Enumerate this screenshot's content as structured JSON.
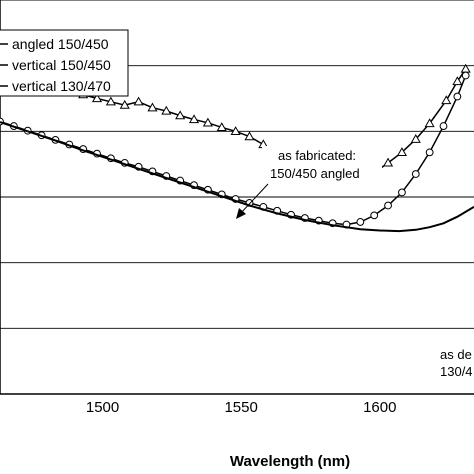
{
  "chart_data": {
    "type": "line",
    "xlabel": "Wavelength (nm)",
    "ylabel": "",
    "title": "",
    "xlim": [
      1463,
      1634
    ],
    "ylim": [
      0,
      6
    ],
    "x_ticks": [
      1500,
      1550,
      1600
    ],
    "y_gridlines": [
      1,
      2,
      3,
      4,
      5,
      6
    ],
    "grid": "horizontal",
    "legend_position": "top-left",
    "series": [
      {
        "name": "angled 150/450",
        "marker": "triangle",
        "points": [
          [
            1463,
            4.82
          ],
          [
            1468,
            4.79
          ],
          [
            1473,
            4.76
          ],
          [
            1478,
            4.72
          ],
          [
            1483,
            4.67
          ],
          [
            1488,
            4.64
          ],
          [
            1493,
            4.56
          ],
          [
            1498,
            4.5
          ],
          [
            1503,
            4.45
          ],
          [
            1508,
            4.4
          ],
          [
            1513,
            4.45
          ],
          [
            1518,
            4.36
          ],
          [
            1523,
            4.31
          ],
          [
            1528,
            4.24
          ],
          [
            1533,
            4.18
          ],
          [
            1538,
            4.13
          ],
          [
            1543,
            4.06
          ],
          [
            1548,
            4.0
          ],
          [
            1553,
            3.92
          ],
          [
            1558,
            3.8
          ],
          [
            1561,
            3.55
          ],
          [
            1566,
            3.5
          ],
          [
            1568,
            3.52
          ],
          [
            1574,
            3.47
          ],
          [
            1578,
            3.4
          ],
          [
            1583,
            3.33
          ],
          [
            1588,
            3.33
          ],
          [
            1593,
            3.35
          ],
          [
            1598,
            3.37
          ],
          [
            1603,
            3.52
          ],
          [
            1608,
            3.68
          ],
          [
            1613,
            3.88
          ],
          [
            1618,
            4.12
          ],
          [
            1624,
            4.47
          ],
          [
            1628,
            4.76
          ],
          [
            1631,
            4.95
          ]
        ]
      },
      {
        "name": "vertical 150/450",
        "marker": "circle",
        "points": [
          [
            1463,
            4.15
          ],
          [
            1468,
            4.08
          ],
          [
            1473,
            4.01
          ],
          [
            1478,
            3.94
          ],
          [
            1483,
            3.87
          ],
          [
            1488,
            3.8
          ],
          [
            1493,
            3.73
          ],
          [
            1498,
            3.66
          ],
          [
            1503,
            3.59
          ],
          [
            1508,
            3.52
          ],
          [
            1513,
            3.46
          ],
          [
            1518,
            3.39
          ],
          [
            1523,
            3.32
          ],
          [
            1528,
            3.25
          ],
          [
            1533,
            3.18
          ],
          [
            1538,
            3.11
          ],
          [
            1543,
            3.04
          ],
          [
            1548,
            2.97
          ],
          [
            1553,
            2.91
          ],
          [
            1558,
            2.85
          ],
          [
            1563,
            2.79
          ],
          [
            1568,
            2.73
          ],
          [
            1573,
            2.68
          ],
          [
            1578,
            2.64
          ],
          [
            1583,
            2.6
          ],
          [
            1588,
            2.58
          ],
          [
            1593,
            2.62
          ],
          [
            1598,
            2.72
          ],
          [
            1603,
            2.87
          ],
          [
            1608,
            3.07
          ],
          [
            1613,
            3.35
          ],
          [
            1618,
            3.68
          ],
          [
            1623,
            4.08
          ],
          [
            1628,
            4.53
          ],
          [
            1631,
            4.85
          ]
        ]
      },
      {
        "name": "vertical 130/470",
        "marker": "none",
        "points": [
          [
            1463,
            4.14
          ],
          [
            1473,
            4.0
          ],
          [
            1483,
            3.86
          ],
          [
            1493,
            3.71
          ],
          [
            1503,
            3.57
          ],
          [
            1513,
            3.43
          ],
          [
            1523,
            3.29
          ],
          [
            1533,
            3.15
          ],
          [
            1543,
            3.01
          ],
          [
            1553,
            2.87
          ],
          [
            1563,
            2.75
          ],
          [
            1573,
            2.65
          ],
          [
            1583,
            2.57
          ],
          [
            1593,
            2.51
          ],
          [
            1600,
            2.49
          ],
          [
            1607,
            2.48
          ],
          [
            1613,
            2.5
          ],
          [
            1618,
            2.54
          ],
          [
            1623,
            2.6
          ],
          [
            1628,
            2.7
          ],
          [
            1634,
            2.85
          ]
        ]
      }
    ],
    "annotations": [
      {
        "id": "as-fabricated",
        "lines": [
          "as fabricated:",
          "150/450 angled"
        ]
      },
      {
        "id": "as-designed",
        "lines": [
          "as de",
          "130/4"
        ]
      }
    ]
  }
}
